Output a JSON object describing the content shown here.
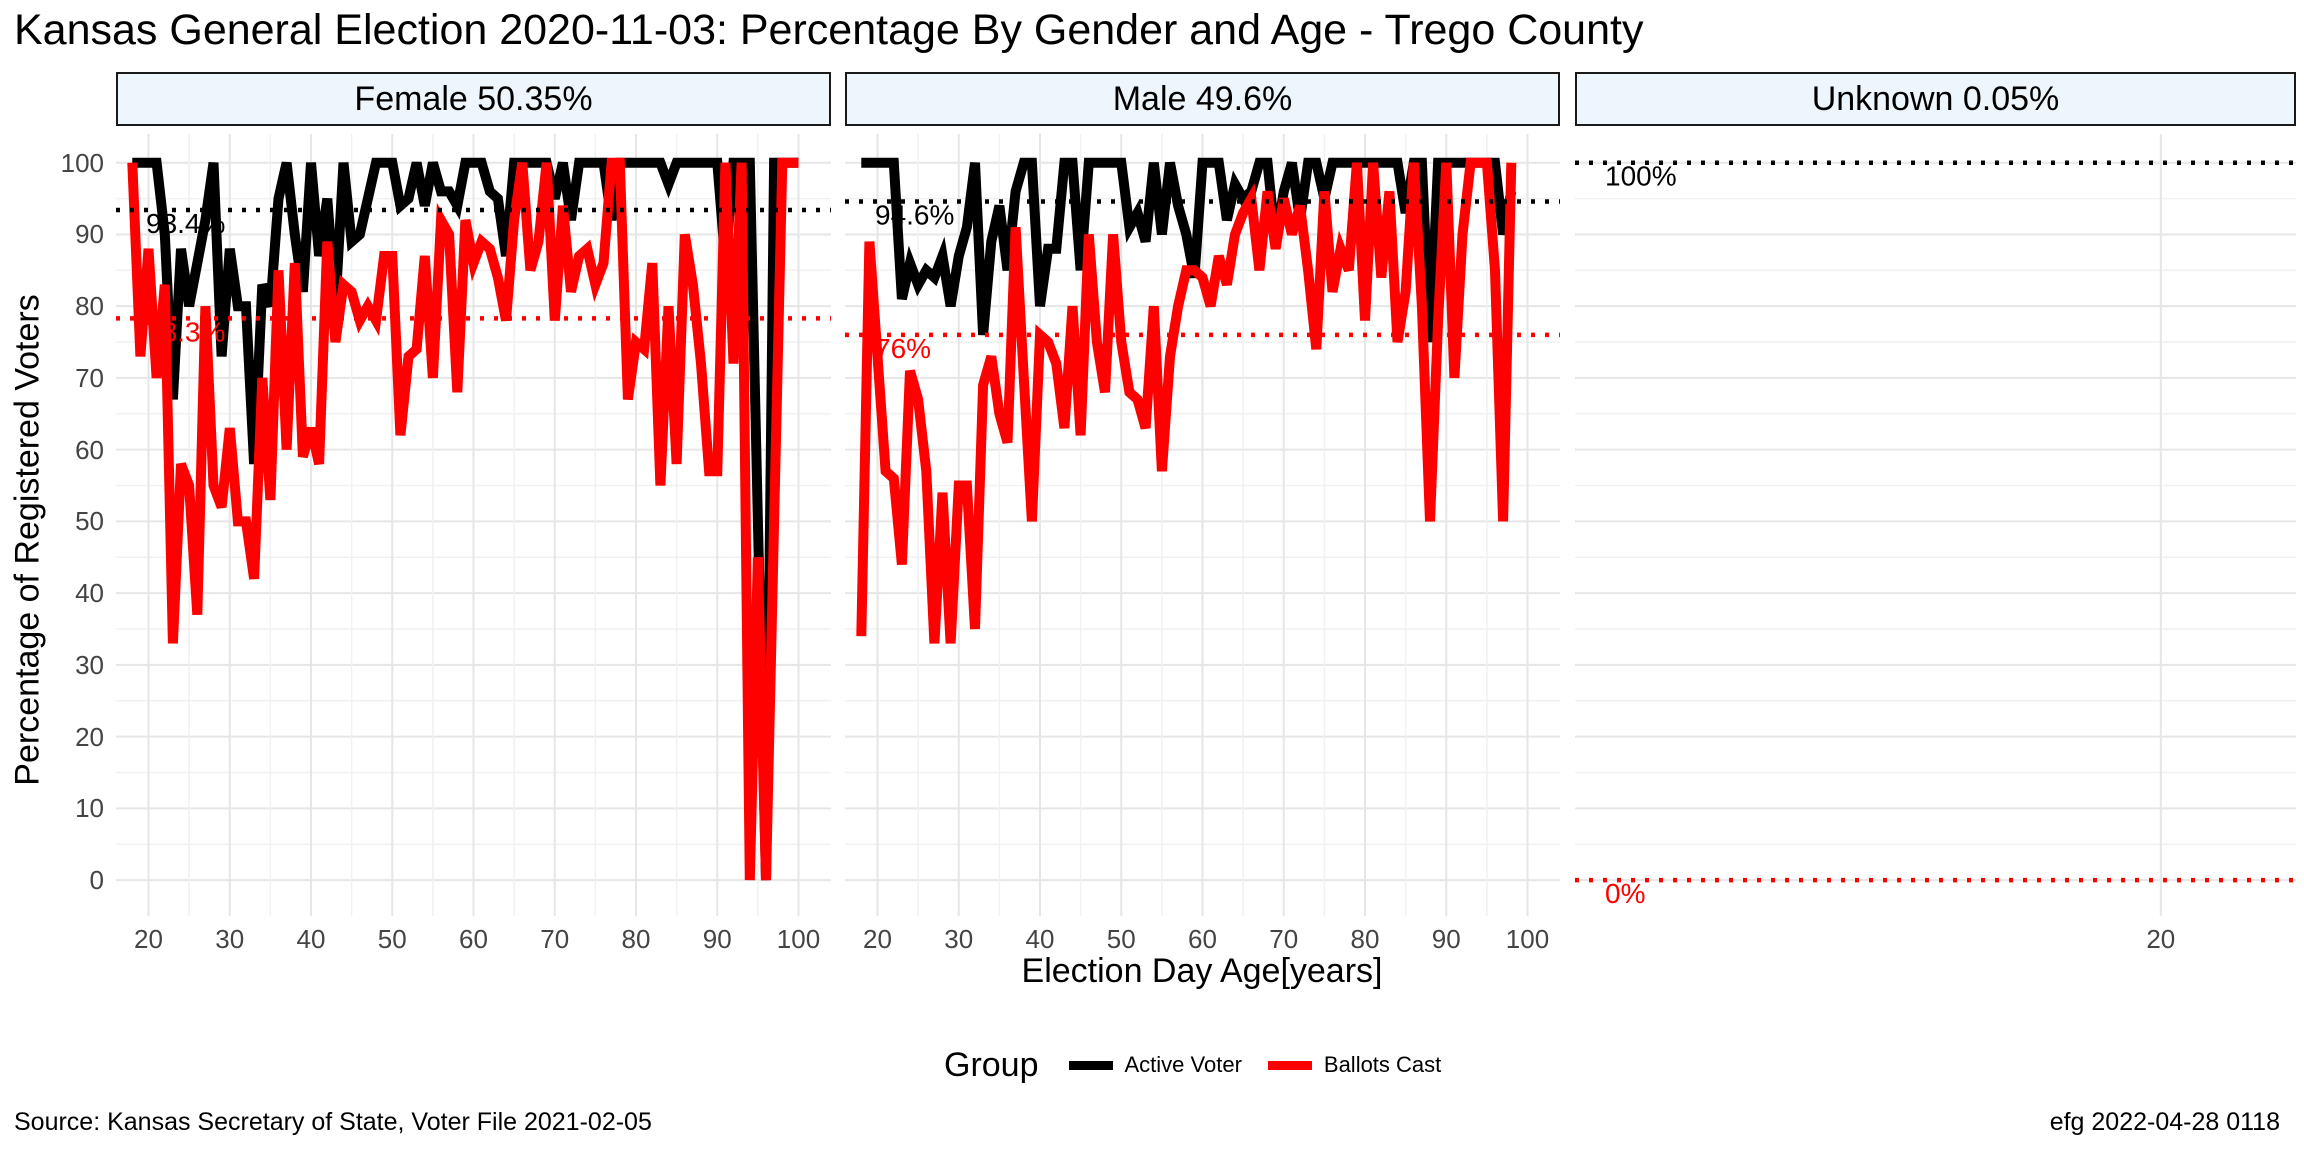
{
  "title": "Kansas General Election 2020-11-03:  Percentage By Gender and Age - Trego County",
  "y_axis_label": "Percentage of Registered Voters",
  "x_axis_label": "Election Day Age[years]",
  "legend": {
    "title": "Group",
    "items": [
      {
        "label": "Active Voter",
        "color": "#000000"
      },
      {
        "label": "Ballots Cast",
        "color": "#ff0000"
      }
    ]
  },
  "source": "Source:  Kansas Secretary of State, Voter File  2021-02-05",
  "stamp": "efg 2022-04-28 0118",
  "chart_data": {
    "type": "line",
    "facet_by": "gender",
    "ylim": [
      -5,
      104
    ],
    "y_ticks": [
      0,
      10,
      20,
      30,
      40,
      50,
      60,
      70,
      80,
      90,
      100
    ],
    "grid": true,
    "legend_position": "bottom",
    "panels": [
      {
        "strip": "Female 50.35%",
        "xlim": [
          16,
          104
        ],
        "x_ticks": [
          20,
          30,
          40,
          50,
          60,
          70,
          80,
          90,
          100
        ],
        "reference_lines": [
          {
            "series": "Active Voter",
            "value": 93.4,
            "label": "93.4%"
          },
          {
            "series": "Ballots Cast",
            "value": 78.3,
            "label": "78.3%"
          }
        ],
        "series": [
          {
            "name": "Active Voter",
            "x": [
              18,
              19,
              20,
              21,
              22,
              23,
              24,
              25,
              26,
              27,
              28,
              29,
              30,
              31,
              32,
              33,
              34,
              35,
              36,
              37,
              38,
              39,
              40,
              41,
              42,
              43,
              44,
              45,
              46,
              47,
              48,
              49,
              50,
              51,
              52,
              53,
              54,
              55,
              56,
              57,
              58,
              59,
              60,
              61,
              62,
              63,
              64,
              65,
              66,
              67,
              68,
              69,
              70,
              71,
              72,
              73,
              74,
              75,
              76,
              77,
              78,
              79,
              80,
              81,
              82,
              83,
              84,
              85,
              86,
              87,
              88,
              89,
              90,
              91,
              92,
              93,
              94,
              95,
              96,
              97,
              98,
              99,
              100
            ],
            "y": [
              100,
              100,
              100,
              100,
              90,
              67,
              88,
              80,
              86,
              92,
              100,
              73,
              88,
              80,
              80,
              58,
              83,
              80,
              95,
              100,
              90,
              82,
              100,
              87,
              95,
              80,
              100,
              89,
              90,
              95,
              100,
              100,
              100,
              94,
              95,
              100,
              94,
              100,
              96,
              96,
              94,
              100,
              100,
              100,
              96,
              95,
              87,
              100,
              100,
              100,
              100,
              100,
              95,
              100,
              92,
              100,
              100,
              100,
              100,
              92,
              100,
              100,
              100,
              100,
              100,
              100,
              97,
              100,
              100,
              100,
              100,
              100,
              100,
              86,
              100,
              100,
              100,
              50,
              0,
              100,
              100,
              100,
              100
            ]
          },
          {
            "name": "Ballots Cast",
            "x": [
              18,
              19,
              20,
              21,
              22,
              23,
              24,
              25,
              26,
              27,
              28,
              29,
              30,
              31,
              32,
              33,
              34,
              35,
              36,
              37,
              38,
              39,
              40,
              41,
              42,
              43,
              44,
              45,
              46,
              47,
              48,
              49,
              50,
              51,
              52,
              53,
              54,
              55,
              56,
              57,
              58,
              59,
              60,
              61,
              62,
              63,
              64,
              65,
              66,
              67,
              68,
              69,
              70,
              71,
              72,
              73,
              74,
              75,
              76,
              77,
              78,
              79,
              80,
              81,
              82,
              83,
              84,
              85,
              86,
              87,
              88,
              89,
              90,
              91,
              92,
              93,
              94,
              95,
              96,
              97,
              98,
              99,
              100
            ],
            "y": [
              100,
              73,
              88,
              70,
              83,
              33,
              58,
              55,
              37,
              80,
              55,
              52,
              63,
              50,
              50,
              42,
              70,
              53,
              85,
              60,
              86,
              59,
              63,
              58,
              89,
              75,
              83,
              82,
              78,
              80,
              78,
              87,
              87,
              62,
              73,
              74,
              87,
              70,
              92,
              90,
              68,
              92,
              86,
              89,
              88,
              84,
              78,
              92,
              100,
              85,
              89,
              100,
              78,
              94,
              82,
              87,
              88,
              83,
              86,
              100,
              100,
              67,
              75,
              74,
              86,
              55,
              80,
              58,
              90,
              83,
              72,
              57,
              57,
              100,
              72,
              100,
              0,
              45,
              0,
              50,
              100,
              100,
              100
            ]
          }
        ]
      },
      {
        "strip": "Male 49.6%",
        "xlim": [
          16,
          104
        ],
        "x_ticks": [
          20,
          30,
          40,
          50,
          60,
          70,
          80,
          90,
          100
        ],
        "reference_lines": [
          {
            "series": "Active Voter",
            "value": 94.6,
            "label": "94.6%"
          },
          {
            "series": "Ballots Cast",
            "value": 76.0,
            "label": "76%"
          }
        ],
        "series": [
          {
            "name": "Active Voter",
            "x": [
              18,
              19,
              20,
              21,
              22,
              23,
              24,
              25,
              26,
              27,
              28,
              29,
              30,
              31,
              32,
              33,
              34,
              35,
              36,
              37,
              38,
              39,
              40,
              41,
              42,
              43,
              44,
              45,
              46,
              47,
              48,
              49,
              50,
              51,
              52,
              53,
              54,
              55,
              56,
              57,
              58,
              59,
              60,
              61,
              62,
              63,
              64,
              65,
              66,
              67,
              68,
              69,
              70,
              71,
              72,
              73,
              74,
              75,
              76,
              77,
              78,
              79,
              80,
              81,
              82,
              83,
              84,
              85,
              86,
              87,
              88,
              89,
              90,
              91,
              92,
              93,
              94,
              95,
              96,
              97,
              98
            ],
            "y": [
              100,
              100,
              100,
              100,
              100,
              81,
              86,
              83,
              85,
              84,
              87,
              80,
              87,
              91,
              100,
              76,
              89,
              94,
              85,
              96,
              100,
              100,
              80,
              88,
              88,
              100,
              100,
              85,
              100,
              100,
              100,
              100,
              100,
              91,
              93,
              89,
              100,
              90,
              100,
              94,
              90,
              84,
              100,
              100,
              100,
              92,
              97,
              95,
              96,
              100,
              100,
              89,
              96,
              100,
              92,
              100,
              100,
              95,
              100,
              100,
              100,
              100,
              100,
              100,
              100,
              100,
              100,
              93,
              100,
              100,
              75,
              100,
              100,
              100,
              100,
              100,
              100,
              100,
              100,
              90,
              96
            ]
          },
          {
            "name": "Ballots Cast",
            "x": [
              18,
              19,
              20,
              21,
              22,
              23,
              24,
              25,
              26,
              27,
              28,
              29,
              30,
              31,
              32,
              33,
              34,
              35,
              36,
              37,
              38,
              39,
              40,
              41,
              42,
              43,
              44,
              45,
              46,
              47,
              48,
              49,
              50,
              51,
              52,
              53,
              54,
              55,
              56,
              57,
              58,
              59,
              60,
              61,
              62,
              63,
              64,
              65,
              66,
              67,
              68,
              69,
              70,
              71,
              72,
              73,
              74,
              75,
              76,
              77,
              78,
              79,
              80,
              81,
              82,
              83,
              84,
              85,
              86,
              87,
              88,
              89,
              90,
              91,
              92,
              93,
              94,
              95,
              96,
              97,
              98
            ],
            "y": [
              34,
              89,
              73,
              57,
              56,
              44,
              71,
              67,
              57,
              33,
              54,
              33,
              55,
              55,
              35,
              69,
              73,
              65,
              61,
              91,
              70,
              50,
              76,
              75,
              72,
              63,
              80,
              62,
              90,
              75,
              68,
              90,
              75,
              68,
              67,
              63,
              80,
              57,
              73,
              80,
              85,
              85,
              84,
              80,
              87,
              83,
              90,
              93,
              95,
              85,
              96,
              88,
              95,
              90,
              94,
              85,
              74,
              96,
              82,
              88,
              85,
              100,
              78,
              100,
              84,
              96,
              75,
              82,
              100,
              80,
              50,
              78,
              100,
              70,
              90,
              100,
              100,
              100,
              85,
              50,
              100
            ]
          }
        ]
      },
      {
        "strip": "Unknown 0.05%",
        "xlim": [
          7,
          23
        ],
        "x_ticks": [
          20
        ],
        "reference_lines": [
          {
            "series": "Active Voter",
            "value": 100,
            "label": "100%"
          },
          {
            "series": "Ballots Cast",
            "value": 0,
            "label": "0%"
          }
        ],
        "series": []
      }
    ]
  }
}
